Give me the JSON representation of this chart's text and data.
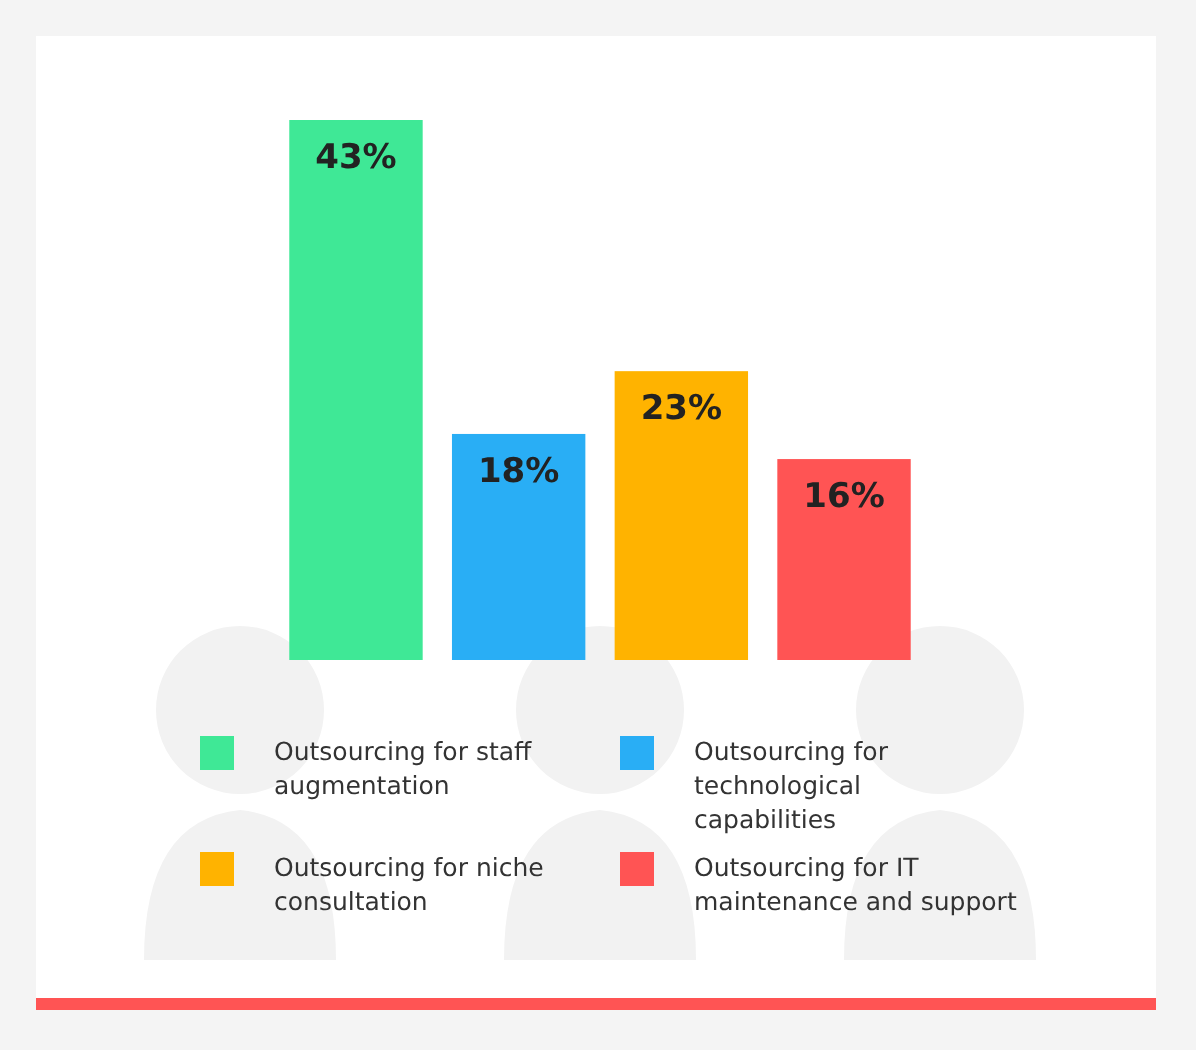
{
  "chart_data": {
    "type": "bar",
    "stacked": true,
    "categories": [
      null,
      null,
      null,
      null
    ],
    "series": [
      {
        "name": "Outsourcing for staff augmentation",
        "color": "#3fe896",
        "values": [
          43,
          null,
          null,
          null
        ],
        "value_labels": [
          "43%",
          null,
          null,
          null
        ]
      },
      {
        "name": "Outsourcing for technological capabilities",
        "color": "#29aef5",
        "values": [
          null,
          18,
          null,
          null
        ],
        "value_labels": [
          null,
          "18%",
          null,
          null
        ]
      },
      {
        "name": "Outsourcing for niche consultation",
        "color": "#ffb300",
        "values": [
          null,
          null,
          23,
          null
        ],
        "value_labels": [
          null,
          null,
          "23%",
          null
        ]
      },
      {
        "name": "Outsourcing for IT maintenance and support",
        "color": "#ff5454",
        "values": [
          null,
          null,
          null,
          16
        ],
        "value_labels": [
          null,
          null,
          null,
          "16%"
        ]
      }
    ],
    "legend": "bottom"
  }
}
